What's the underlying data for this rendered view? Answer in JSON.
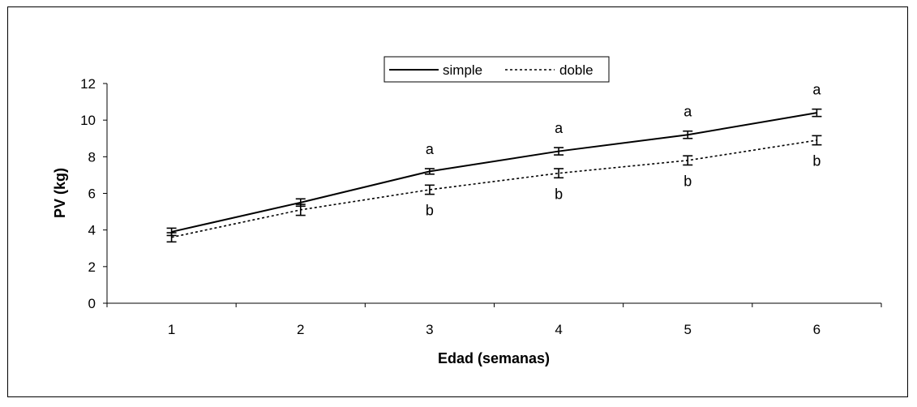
{
  "chart_data": {
    "type": "line",
    "xlabel": "Edad (semanas)",
    "ylabel": "PV (kg)",
    "categories": [
      "1",
      "2",
      "3",
      "4",
      "5",
      "6"
    ],
    "ylim": [
      0,
      12
    ],
    "yticks": [
      0,
      2,
      4,
      6,
      8,
      10,
      12
    ],
    "legend_position": "top-center",
    "grid": false,
    "series": [
      {
        "name": "simple",
        "style": "solid",
        "values": [
          3.9,
          5.5,
          7.2,
          8.3,
          9.2,
          10.4
        ],
        "error": [
          0.2,
          0.2,
          0.15,
          0.2,
          0.2,
          0.2
        ],
        "labels": [
          "",
          "",
          "a",
          "a",
          "a",
          "a"
        ]
      },
      {
        "name": "doble",
        "style": "dotted",
        "values": [
          3.6,
          5.1,
          6.2,
          7.1,
          7.8,
          8.9
        ],
        "error": [
          0.25,
          0.3,
          0.25,
          0.25,
          0.25,
          0.25
        ],
        "labels": [
          "",
          "",
          "b",
          "b",
          "b",
          "b"
        ]
      }
    ]
  }
}
